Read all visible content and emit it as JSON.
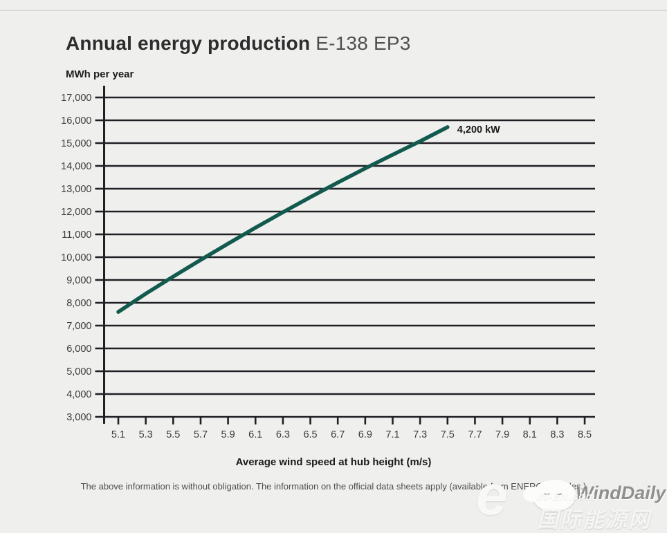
{
  "page": {
    "title_bold": "Annual energy production",
    "title_light": "E-138 EP3",
    "y_axis_unit": "MWh per year",
    "x_axis_title": "Average wind speed at hub height (m/s)",
    "disclaimer": "The above information is without obligation. The information on the official data sheets apply (available from ENERCON Sales.)"
  },
  "watermark": {
    "logo_letter": "e",
    "brand": "WindDaily",
    "site": "IN-EN.com",
    "site_cn": "国际能源网"
  },
  "chart_data": {
    "type": "line",
    "title": "Annual energy production E-138 EP3",
    "xlabel": "Average wind speed at hub height (m/s)",
    "ylabel": "MWh per year",
    "x_ticks": [
      5.1,
      5.3,
      5.5,
      5.7,
      5.9,
      6.1,
      6.3,
      6.5,
      6.7,
      6.9,
      7.1,
      7.3,
      7.5,
      7.7,
      7.9,
      8.1,
      8.3,
      8.5
    ],
    "y_ticks": [
      3000,
      4000,
      5000,
      6000,
      7000,
      8000,
      9000,
      10000,
      11000,
      12000,
      13000,
      14000,
      15000,
      16000,
      17000
    ],
    "xlim": [
      5.0,
      8.58
    ],
    "ylim": [
      3000,
      17000
    ],
    "grid": "horizontal-only",
    "legend_position": "none",
    "colors": {
      "line": "#135a4e",
      "grid": "#202024",
      "tick_label": "#3b3b3b",
      "annotation": "#1a1a1a"
    },
    "series": [
      {
        "name": "4,200 kW",
        "x": [
          5.1,
          5.3,
          5.5,
          5.7,
          5.9,
          6.1,
          6.3,
          6.5,
          6.7,
          6.9,
          7.1,
          7.3,
          7.5
        ],
        "y": [
          7600,
          8400,
          9150,
          9880,
          10590,
          11290,
          11970,
          12630,
          13270,
          13890,
          14490,
          15080,
          15700
        ]
      }
    ],
    "annotation": {
      "label": "4,200 kW",
      "x": 7.5,
      "y": 15700
    }
  }
}
